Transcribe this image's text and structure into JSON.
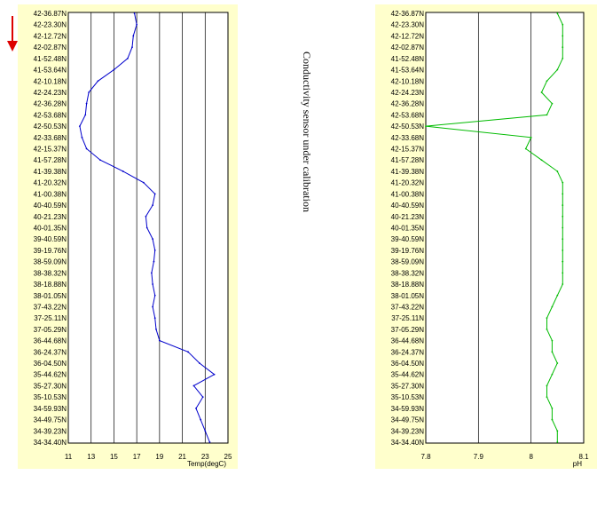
{
  "annotation": "Conductivity sensor under calibration",
  "colors": {
    "panel_bg": "#ffffcc",
    "temp_line": "#0000cc",
    "ph_line": "#00bb00",
    "grid": "#000000",
    "arrow": "#dd0000"
  },
  "icons": {
    "direction": "down-arrow-icon"
  },
  "chart_data": [
    {
      "type": "line",
      "title": "",
      "xlabel": "Temp(degC)",
      "ylabel": "",
      "xlim": [
        11,
        25
      ],
      "xticks": [
        11,
        13,
        15,
        17,
        19,
        21,
        23,
        25
      ],
      "grid": true,
      "y_categories": [
        "42-36.87N",
        "42-23.30N",
        "42-12.72N",
        "42-02.87N",
        "41-52.48N",
        "41-53.64N",
        "42-10.18N",
        "42-24.23N",
        "42-36.28N",
        "42-53.68N",
        "42-50.53N",
        "42-33.68N",
        "42-15.37N",
        "41-57.28N",
        "41-39.38N",
        "41-20.32N",
        "41-00.38N",
        "40-40.59N",
        "40-21.23N",
        "40-01.35N",
        "39-40.59N",
        "39-19.76N",
        "38-59.09N",
        "38-38.32N",
        "38-18.88N",
        "38-01.05N",
        "37-43.22N",
        "37-25.11N",
        "37-05.29N",
        "36-44.68N",
        "36-24.37N",
        "36-04.50N",
        "35-44.62N",
        "35-27.30N",
        "35-10.53N",
        "34-59.93N",
        "34-49.75N",
        "34-39.23N",
        "34-34.40N"
      ],
      "series": [
        {
          "values": [
            16.8,
            17.0,
            16.7,
            16.6,
            16.2,
            15.0,
            13.6,
            12.8,
            12.6,
            12.5,
            12.0,
            12.2,
            12.6,
            13.8,
            15.8,
            17.6,
            18.6,
            18.4,
            17.8,
            17.9,
            18.4,
            18.6,
            18.5,
            18.3,
            18.4,
            18.6,
            18.4,
            18.6,
            18.7,
            19.0,
            21.5,
            22.5,
            23.8,
            22.0,
            22.8,
            22.2,
            22.6,
            23.0,
            23.4
          ]
        }
      ]
    },
    {
      "type": "line",
      "title": "",
      "xlabel": "pH",
      "ylabel": "",
      "xlim": [
        7.8,
        8.1
      ],
      "xticks": [
        "7.8",
        "7.9",
        "8",
        "8.1"
      ],
      "grid": true,
      "y_categories": [
        "42-36.87N",
        "42-23.30N",
        "42-12.72N",
        "42-02.87N",
        "41-52.48N",
        "41-53.64N",
        "42-10.18N",
        "42-24.23N",
        "42-36.28N",
        "42-53.68N",
        "42-50.53N",
        "42-33.68N",
        "42-15.37N",
        "41-57.28N",
        "41-39.38N",
        "41-20.32N",
        "41-00.38N",
        "40-40.59N",
        "40-21.23N",
        "40-01.35N",
        "39-40.59N",
        "39-19.76N",
        "38-59.09N",
        "38-38.32N",
        "38-18.88N",
        "38-01.05N",
        "37-43.22N",
        "37-25.11N",
        "37-05.29N",
        "36-44.68N",
        "36-24.37N",
        "36-04.50N",
        "35-44.62N",
        "35-27.30N",
        "35-10.53N",
        "34-59.93N",
        "34-49.75N",
        "34-39.23N",
        "34-34.40N"
      ],
      "series": [
        {
          "values": [
            8.05,
            8.06,
            8.06,
            8.06,
            8.06,
            8.05,
            8.03,
            8.02,
            8.04,
            8.03,
            7.8,
            8.0,
            7.99,
            8.02,
            8.05,
            8.06,
            8.06,
            8.06,
            8.06,
            8.06,
            8.06,
            8.06,
            8.06,
            8.06,
            8.06,
            8.05,
            8.04,
            8.03,
            8.03,
            8.04,
            8.04,
            8.05,
            8.04,
            8.03,
            8.03,
            8.04,
            8.04,
            8.05,
            8.05
          ]
        }
      ]
    }
  ]
}
